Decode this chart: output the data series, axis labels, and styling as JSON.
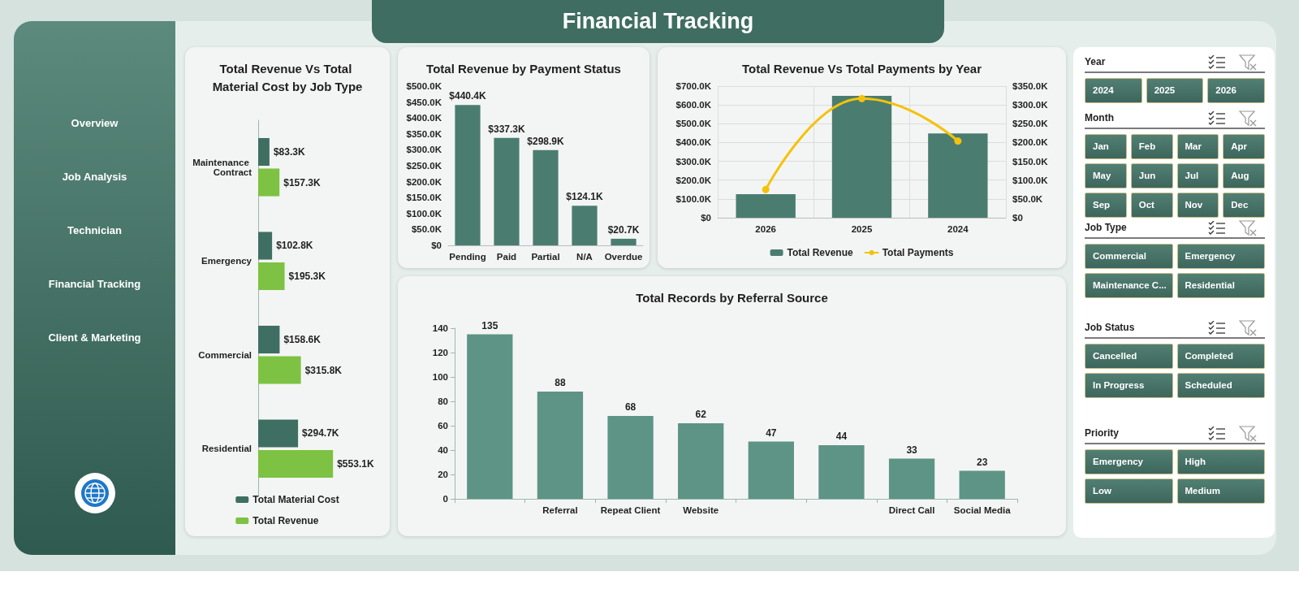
{
  "chart_data": [
    {
      "type": "other",
      "title": "Financial Tracking",
      "annotations": [
        "Overview",
        "Job Analysis",
        "Technician",
        "Financial Tracking",
        "Client & Marketing"
      ]
    },
    {
      "type": "bar",
      "title": "Total Revenue Vs Total Material Cost by Job Type",
      "orientation": "horizontal",
      "categories": [
        "Maintenance Contract",
        "Emergency",
        "Commercial",
        "Residential"
      ],
      "tick_labels": "y",
      "legend": "bottom",
      "series": [
        {
          "name": "Total Material Cost",
          "color": "#3f6f62",
          "values": [
            83300,
            102800,
            158600,
            294700
          ],
          "value_labels": [
            "$83.3K",
            "$102.8K",
            "$158.6K",
            "$294.7K"
          ]
        },
        {
          "name": "Total Revenue",
          "color": "#7dc242",
          "values": [
            157300,
            195300,
            315800,
            553100
          ],
          "value_labels": [
            "$157.3K",
            "$195.3K",
            "$315.8K",
            "$553.1K"
          ]
        }
      ]
    },
    {
      "type": "bar",
      "title": "Total Revenue by Payment Status",
      "categories": [
        "Pending",
        "Paid",
        "Partial",
        "N/A",
        "Overdue"
      ],
      "color": "#4a7d70",
      "values": [
        440400,
        337300,
        298900,
        124100,
        20700
      ],
      "value_labels": [
        "$440.4K",
        "$337.3K",
        "$298.9K",
        "$124.1K",
        "$20.7K"
      ],
      "ylim": [
        0,
        500000
      ],
      "yticks": [
        {
          "value": 0,
          "label": "$0"
        },
        {
          "value": 50000,
          "label": "$50.0K"
        },
        {
          "value": 100000,
          "label": "$100.0K"
        },
        {
          "value": 150000,
          "label": "$150.0K"
        },
        {
          "value": 200000,
          "label": "$200.0K"
        },
        {
          "value": 250000,
          "label": "$250.0K"
        },
        {
          "value": 300000,
          "label": "$300.0K"
        },
        {
          "value": 350000,
          "label": "$350.0K"
        },
        {
          "value": 400000,
          "label": "$400.0K"
        },
        {
          "value": 450000,
          "label": "$450.0K"
        },
        {
          "value": 500000,
          "label": "$500.0K"
        }
      ]
    },
    {
      "type": "bar",
      "title": "Total Revenue Vs Total Payments by Year",
      "categories": [
        "2026",
        "2025",
        "2024"
      ],
      "grid": true,
      "legend": "bottom",
      "marker": "circle",
      "series": [
        {
          "name": "Total Revenue",
          "color": "#4a7d70",
          "values": [
            125000,
            648000,
            448000
          ]
        },
        {
          "name": "Total Payments",
          "type": "line",
          "axis": "y2",
          "color": "#f4c20d",
          "values": [
            75000,
            317000,
            204000
          ]
        }
      ],
      "ylim": [
        0,
        700000
      ],
      "yticks": [
        {
          "value": 0,
          "label": "$0"
        },
        {
          "value": 100000,
          "label": "$100.0K"
        },
        {
          "value": 200000,
          "label": "$200.0K"
        },
        {
          "value": 300000,
          "label": "$300.0K"
        },
        {
          "value": 400000,
          "label": "$400.0K"
        },
        {
          "value": 500000,
          "label": "$500.0K"
        },
        {
          "value": 600000,
          "label": "$600.0K"
        },
        {
          "value": 700000,
          "label": "$700.0K"
        }
      ],
      "y2lim": [
        0,
        350000
      ],
      "y2ticks": [
        {
          "value": 0,
          "label": "$0"
        },
        {
          "value": 50000,
          "label": "$50.0K"
        },
        {
          "value": 100000,
          "label": "$100.0K"
        },
        {
          "value": 150000,
          "label": "$150.0K"
        },
        {
          "value": 200000,
          "label": "$200.0K"
        },
        {
          "value": 250000,
          "label": "$250.0K"
        },
        {
          "value": 300000,
          "label": "$300.0K"
        },
        {
          "value": 350000,
          "label": "$350.0K"
        }
      ]
    },
    {
      "type": "bar",
      "title": "Total Records by Referral Source",
      "categories": [
        null,
        "Referral",
        "Repeat Client",
        "Website",
        null,
        null,
        "Direct Call",
        "Social Media"
      ],
      "color": "#5e9485",
      "values": [
        135,
        88,
        68,
        62,
        47,
        44,
        33,
        23
      ],
      "data_labels": true,
      "ylim": [
        0,
        140
      ],
      "yticks": [
        0,
        20,
        40,
        60,
        80,
        100,
        120,
        140
      ]
    },
    {
      "type": "other",
      "title": "Year",
      "annotations": [
        "2024",
        "2025",
        "2026"
      ]
    },
    {
      "type": "other",
      "title": "Month",
      "annotations": [
        "Jan",
        "Feb",
        "Mar",
        "Apr",
        "May",
        "Jun",
        "Jul",
        "Aug",
        "Sep",
        "Oct",
        "Nov",
        "Dec"
      ]
    },
    {
      "type": "other",
      "title": "Job Type",
      "annotations": [
        "Commercial",
        "Emergency",
        "Maintenance C...",
        "Residential"
      ]
    },
    {
      "type": "other",
      "title": "Job Status",
      "annotations": [
        "Cancelled",
        "Completed",
        "In Progress",
        "Scheduled"
      ]
    },
    {
      "type": "other",
      "title": "Priority",
      "annotations": [
        "Emergency",
        "High",
        "Low",
        "Medium"
      ]
    }
  ]
}
